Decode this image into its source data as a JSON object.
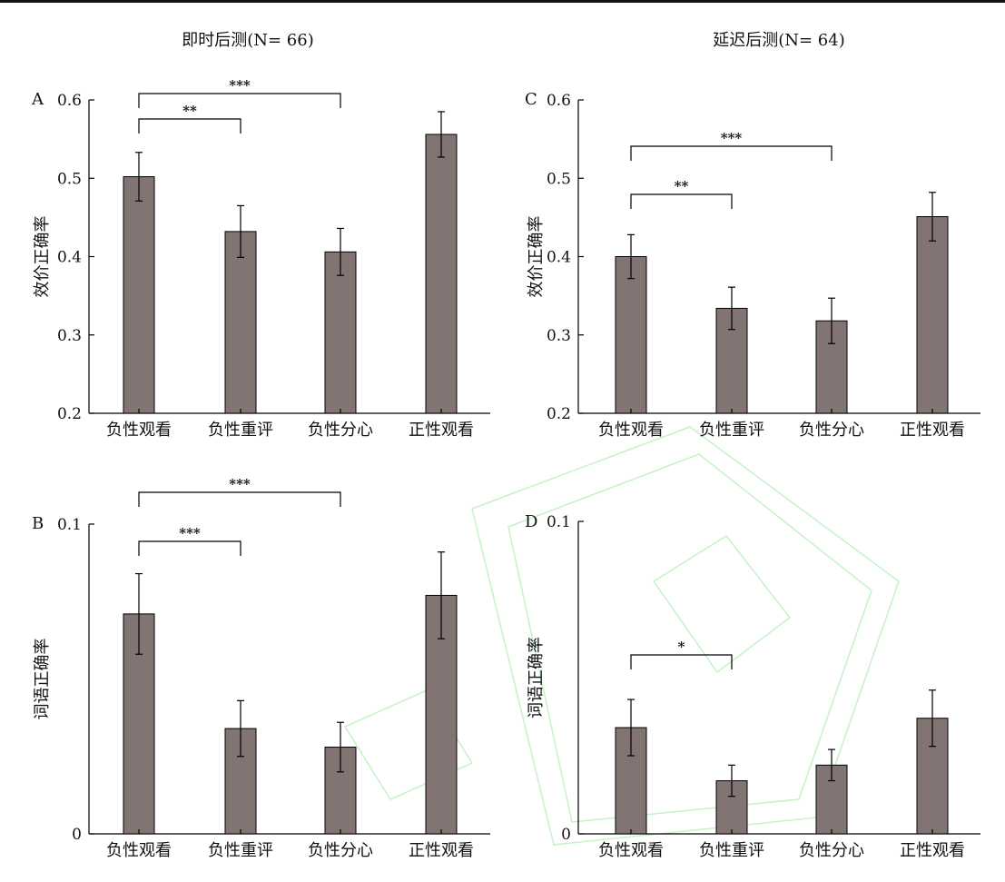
{
  "column_titles": [
    "即时后测(N= 66)",
    "延迟后测(N= 64)"
  ],
  "chart_data": [
    {
      "panel": "A",
      "type": "bar",
      "categories": [
        "负性观看",
        "负性重评",
        "负性分心",
        "正性观看"
      ],
      "values": [
        0.502,
        0.432,
        0.406,
        0.556
      ],
      "errors": [
        0.031,
        0.033,
        0.03,
        0.029
      ],
      "ylabel": "效价正确率",
      "ylim": [
        0.2,
        0.6
      ],
      "yticks": [
        "0.2",
        "0.3",
        "0.4",
        "0.5",
        "0.6"
      ],
      "yticks_values": [
        0.2,
        0.3,
        0.4,
        0.5,
        0.6
      ],
      "significance": [
        {
          "from": 0,
          "to": 1,
          "label": "**"
        },
        {
          "from": 0,
          "to": 2,
          "label": "***"
        }
      ]
    },
    {
      "panel": "B",
      "type": "bar",
      "categories": [
        "负性观看",
        "负性重评",
        "负性分心",
        "正性观看"
      ],
      "values": [
        0.071,
        0.034,
        0.028,
        0.077
      ],
      "errors": [
        0.013,
        0.009,
        0.008,
        0.014
      ],
      "ylabel": "词语正确率",
      "ylim": [
        0,
        0.1
      ],
      "yticks": [
        "0",
        "0.1"
      ],
      "yticks_values": [
        0,
        0.1
      ],
      "significance": [
        {
          "from": 0,
          "to": 1,
          "label": "***"
        },
        {
          "from": 0,
          "to": 2,
          "label": "***"
        }
      ]
    },
    {
      "panel": "C",
      "type": "bar",
      "categories": [
        "负性观看",
        "负性重评",
        "负性分心",
        "正性观看"
      ],
      "values": [
        0.4,
        0.334,
        0.318,
        0.451
      ],
      "errors": [
        0.028,
        0.027,
        0.029,
        0.031
      ],
      "ylabel": "效价正确率",
      "ylim": [
        0.2,
        0.6
      ],
      "yticks": [
        "0.2",
        "0.3",
        "0.4",
        "0.5",
        "0.6"
      ],
      "yticks_values": [
        0.2,
        0.3,
        0.4,
        0.5,
        0.6
      ],
      "significance": [
        {
          "from": 0,
          "to": 1,
          "label": "**"
        },
        {
          "from": 0,
          "to": 2,
          "label": "***"
        }
      ]
    },
    {
      "panel": "D",
      "type": "bar",
      "categories": [
        "负性观看",
        "负性重评",
        "负性分心",
        "正性观看"
      ],
      "values": [
        0.034,
        0.017,
        0.022,
        0.037
      ],
      "errors": [
        0.009,
        0.005,
        0.005,
        0.009
      ],
      "ylabel": "词语正确率",
      "ylim": [
        0,
        0.1
      ],
      "yticks": [
        "0",
        "0.1"
      ],
      "yticks_values": [
        0,
        0.1
      ],
      "significance": [
        {
          "from": 0,
          "to": 1,
          "label": "*"
        }
      ]
    }
  ],
  "colors": {
    "bar_fill": "#817472",
    "axis": "#000000",
    "watermark": "#c6f2c6"
  }
}
